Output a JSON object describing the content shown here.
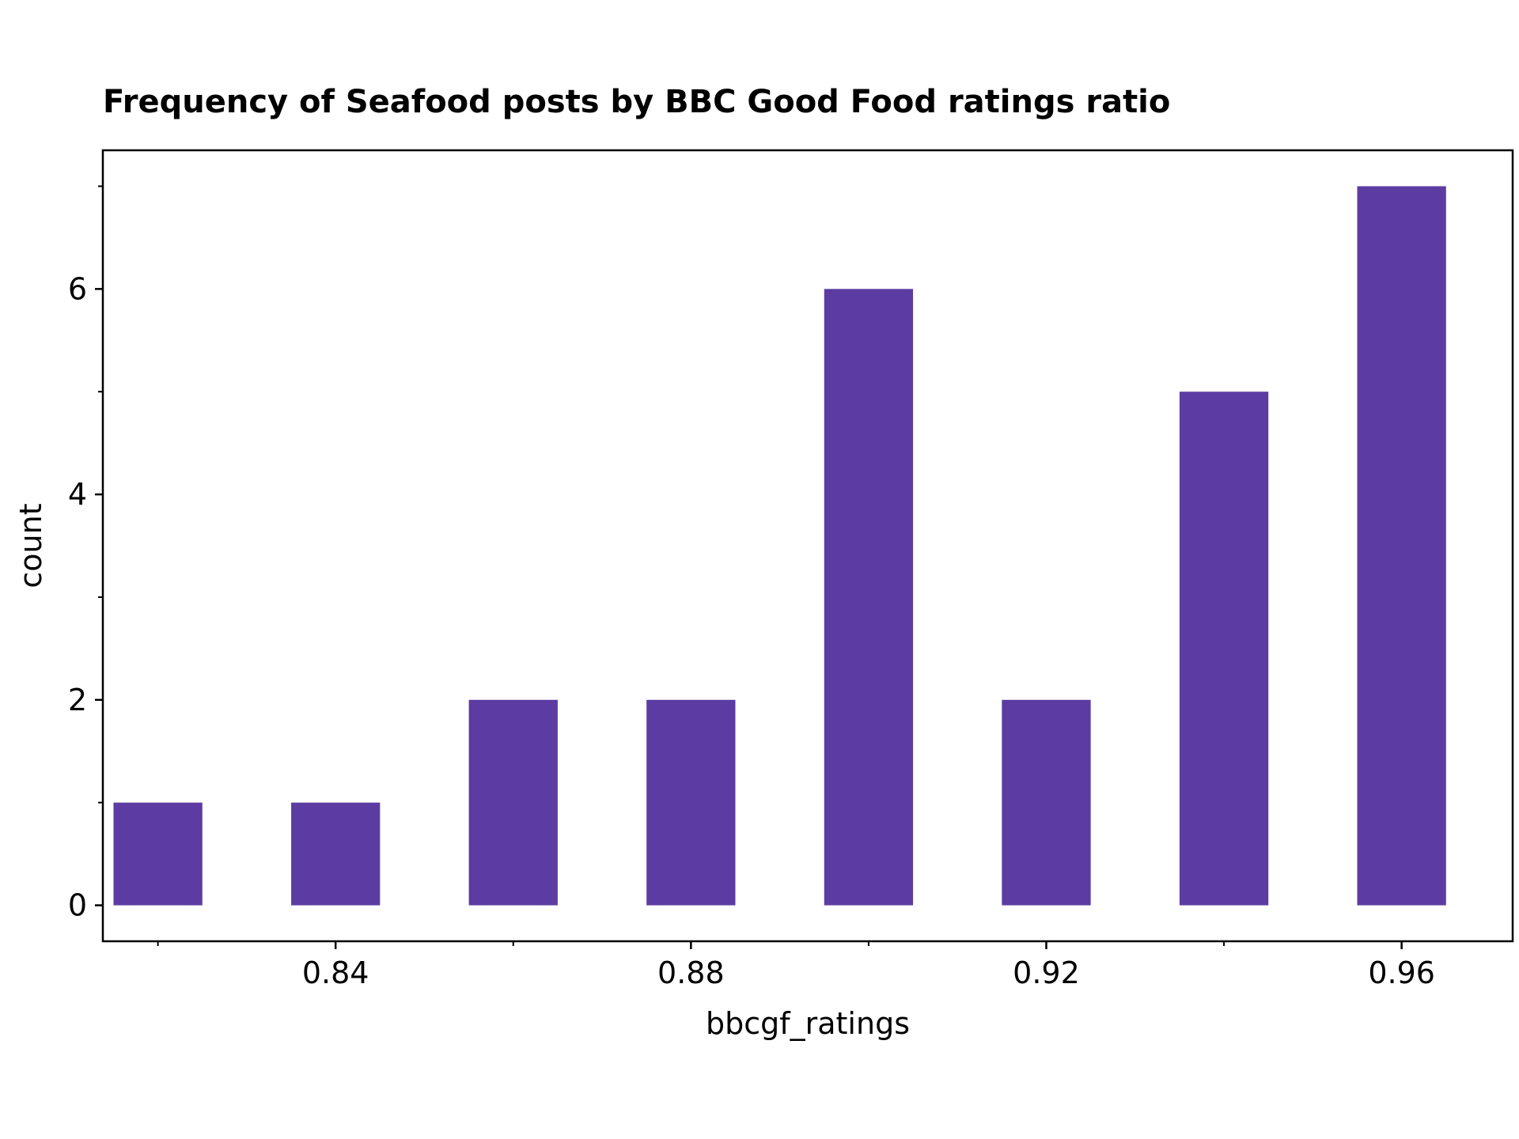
{
  "chart_data": {
    "type": "bar",
    "title": "Frequency of Seafood posts by BBC Good Food ratings ratio",
    "xlabel": "bbcgf_ratings",
    "ylabel": "count",
    "x": [
      0.82,
      0.84,
      0.86,
      0.88,
      0.9,
      0.92,
      0.94,
      0.96
    ],
    "values": [
      1,
      1,
      2,
      2,
      6,
      2,
      5,
      7
    ],
    "bar_width": 0.01,
    "xlim": [
      0.8138,
      0.9725
    ],
    "ylim": [
      -0.35,
      7.35
    ],
    "x_ticks": [
      {
        "value": 0.84,
        "label": "0.84"
      },
      {
        "value": 0.88,
        "label": "0.88"
      },
      {
        "value": 0.92,
        "label": "0.92"
      },
      {
        "value": 0.96,
        "label": "0.96"
      }
    ],
    "x_minor_ticks": [
      0.82,
      0.86,
      0.9,
      0.94
    ],
    "y_ticks": [
      {
        "value": 0,
        "label": "0"
      },
      {
        "value": 2,
        "label": "2"
      },
      {
        "value": 4,
        "label": "4"
      },
      {
        "value": 6,
        "label": "6"
      }
    ],
    "y_minor_ticks": [
      1,
      3,
      5,
      7
    ],
    "bar_color": "#5c3ca2",
    "grid": false,
    "legend": "none"
  }
}
